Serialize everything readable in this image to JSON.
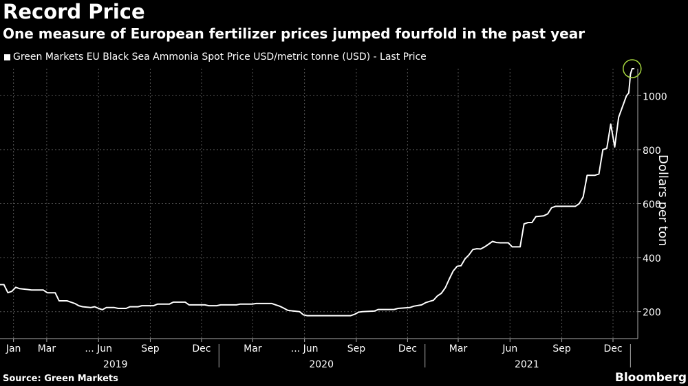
{
  "header": {
    "title": "Record Price",
    "subtitle": "One measure of European fertilizer prices jumped fourfold in the past year"
  },
  "footer": {
    "source": "Source: Green Markets",
    "brand": "Bloomberg"
  },
  "colors": {
    "background": "#000000",
    "line": "#ffffff",
    "grid": "#555555",
    "highlight": "#a6d63f"
  },
  "chart_data": {
    "type": "line",
    "title": "Record Price",
    "subtitle": "One measure of European fertilizer prices jumped fourfold in the past year",
    "legend": "Green Markets EU Black Sea Ammonia Spot Price USD/metric tonne (USD) - Last Price",
    "legend_position": "top-left",
    "ylabel": "Dollars per ton",
    "y_axis_side": "right",
    "ylim": [
      100,
      1100
    ],
    "yticks": [
      200,
      400,
      600,
      800,
      1000
    ],
    "grid": true,
    "xlim": [
      "2018-12-08",
      "2022-01-14"
    ],
    "month_labels": [
      {
        "date": "2019-01-01",
        "label": "Jan"
      },
      {
        "date": "2019-03-01",
        "label": "Mar"
      },
      {
        "date": "2019-06-01",
        "label": "... Jun"
      },
      {
        "date": "2019-09-01",
        "label": "Sep"
      },
      {
        "date": "2019-12-01",
        "label": "Dec"
      },
      {
        "date": "2020-03-01",
        "label": "Mar"
      },
      {
        "date": "2020-06-01",
        "label": "... Jun"
      },
      {
        "date": "2020-09-01",
        "label": "Sep"
      },
      {
        "date": "2020-12-01",
        "label": "Dec"
      },
      {
        "date": "2021-03-01",
        "label": "Mar"
      },
      {
        "date": "2021-06-01",
        "label": "Jun"
      },
      {
        "date": "2021-09-01",
        "label": "Sep"
      },
      {
        "date": "2021-12-01",
        "label": "Dec"
      }
    ],
    "year_labels": [
      {
        "date": "2019-07-01",
        "label": "2019"
      },
      {
        "date": "2020-07-01",
        "label": "2020"
      },
      {
        "date": "2021-07-01",
        "label": "2021"
      }
    ],
    "year_dividers": [
      "2020-01-01",
      "2021-01-01",
      "2022-01-01"
    ],
    "series": [
      {
        "name": "Green Markets EU Black Sea Ammonia Spot Price USD/metric tonne (USD) - Last Price",
        "points": [
          [
            "2018-12-08",
            300
          ],
          [
            "2018-12-15",
            300
          ],
          [
            "2018-12-22",
            270
          ],
          [
            "2018-12-29",
            275
          ],
          [
            "2019-01-05",
            290
          ],
          [
            "2019-01-12",
            285
          ],
          [
            "2019-01-26",
            282
          ],
          [
            "2019-02-02",
            280
          ],
          [
            "2019-02-23",
            280
          ],
          [
            "2019-03-02",
            270
          ],
          [
            "2019-03-16",
            270
          ],
          [
            "2019-03-23",
            240
          ],
          [
            "2019-04-06",
            240
          ],
          [
            "2019-04-13",
            235
          ],
          [
            "2019-04-20",
            230
          ],
          [
            "2019-04-27",
            222
          ],
          [
            "2019-05-04",
            218
          ],
          [
            "2019-05-18",
            215
          ],
          [
            "2019-05-25",
            218
          ],
          [
            "2019-06-01",
            212
          ],
          [
            "2019-06-08",
            207
          ],
          [
            "2019-06-15",
            215
          ],
          [
            "2019-06-29",
            215
          ],
          [
            "2019-07-06",
            212
          ],
          [
            "2019-07-20",
            212
          ],
          [
            "2019-07-27",
            218
          ],
          [
            "2019-08-10",
            218
          ],
          [
            "2019-08-17",
            222
          ],
          [
            "2019-09-07",
            222
          ],
          [
            "2019-09-14",
            228
          ],
          [
            "2019-10-05",
            228
          ],
          [
            "2019-10-12",
            235
          ],
          [
            "2019-11-02",
            235
          ],
          [
            "2019-11-09",
            225
          ],
          [
            "2019-12-07",
            225
          ],
          [
            "2019-12-14",
            222
          ],
          [
            "2019-12-28",
            222
          ],
          [
            "2020-01-04",
            225
          ],
          [
            "2020-02-01",
            225
          ],
          [
            "2020-02-08",
            228
          ],
          [
            "2020-02-29",
            228
          ],
          [
            "2020-03-07",
            230
          ],
          [
            "2020-04-04",
            230
          ],
          [
            "2020-04-11",
            225
          ],
          [
            "2020-04-18",
            220
          ],
          [
            "2020-04-25",
            213
          ],
          [
            "2020-05-02",
            205
          ],
          [
            "2020-05-09",
            203
          ],
          [
            "2020-05-23",
            200
          ],
          [
            "2020-05-30",
            188
          ],
          [
            "2020-06-06",
            185
          ],
          [
            "2020-08-22",
            185
          ],
          [
            "2020-08-29",
            190
          ],
          [
            "2020-09-05",
            198
          ],
          [
            "2020-09-12",
            200
          ],
          [
            "2020-10-03",
            202
          ],
          [
            "2020-10-10",
            208
          ],
          [
            "2020-11-07",
            208
          ],
          [
            "2020-11-14",
            212
          ],
          [
            "2020-12-05",
            215
          ],
          [
            "2020-12-12",
            220
          ],
          [
            "2020-12-26",
            225
          ],
          [
            "2021-01-02",
            233
          ],
          [
            "2021-01-09",
            238
          ],
          [
            "2021-01-16",
            242
          ],
          [
            "2021-01-23",
            258
          ],
          [
            "2021-01-30",
            268
          ],
          [
            "2021-02-06",
            288
          ],
          [
            "2021-02-13",
            320
          ],
          [
            "2021-02-20",
            350
          ],
          [
            "2021-02-27",
            368
          ],
          [
            "2021-03-06",
            370
          ],
          [
            "2021-03-13",
            395
          ],
          [
            "2021-03-20",
            410
          ],
          [
            "2021-03-27",
            430
          ],
          [
            "2021-04-03",
            433
          ],
          [
            "2021-04-10",
            432
          ],
          [
            "2021-04-17",
            440
          ],
          [
            "2021-04-24",
            450
          ],
          [
            "2021-05-01",
            460
          ],
          [
            "2021-05-08",
            456
          ],
          [
            "2021-05-15",
            455
          ],
          [
            "2021-05-29",
            455
          ],
          [
            "2021-06-05",
            440
          ],
          [
            "2021-06-19",
            440
          ],
          [
            "2021-06-26",
            525
          ],
          [
            "2021-07-03",
            530
          ],
          [
            "2021-07-10",
            530
          ],
          [
            "2021-07-17",
            552
          ],
          [
            "2021-07-31",
            555
          ],
          [
            "2021-08-07",
            562
          ],
          [
            "2021-08-14",
            585
          ],
          [
            "2021-08-21",
            590
          ],
          [
            "2021-09-25",
            590
          ],
          [
            "2021-10-02",
            600
          ],
          [
            "2021-10-09",
            625
          ],
          [
            "2021-10-16",
            705
          ],
          [
            "2021-10-30",
            705
          ],
          [
            "2021-11-06",
            710
          ],
          [
            "2021-11-13",
            800
          ],
          [
            "2021-11-20",
            805
          ],
          [
            "2021-11-27",
            895
          ],
          [
            "2021-12-04",
            810
          ],
          [
            "2021-12-11",
            920
          ],
          [
            "2021-12-18",
            960
          ],
          [
            "2021-12-25",
            1000
          ],
          [
            "2021-12-29",
            1010
          ],
          [
            "2022-01-01",
            1080
          ],
          [
            "2022-01-04",
            1100
          ],
          [
            "2022-01-08",
            1100
          ]
        ]
      }
    ],
    "highlight_point": [
      "2022-01-04",
      1100
    ]
  }
}
